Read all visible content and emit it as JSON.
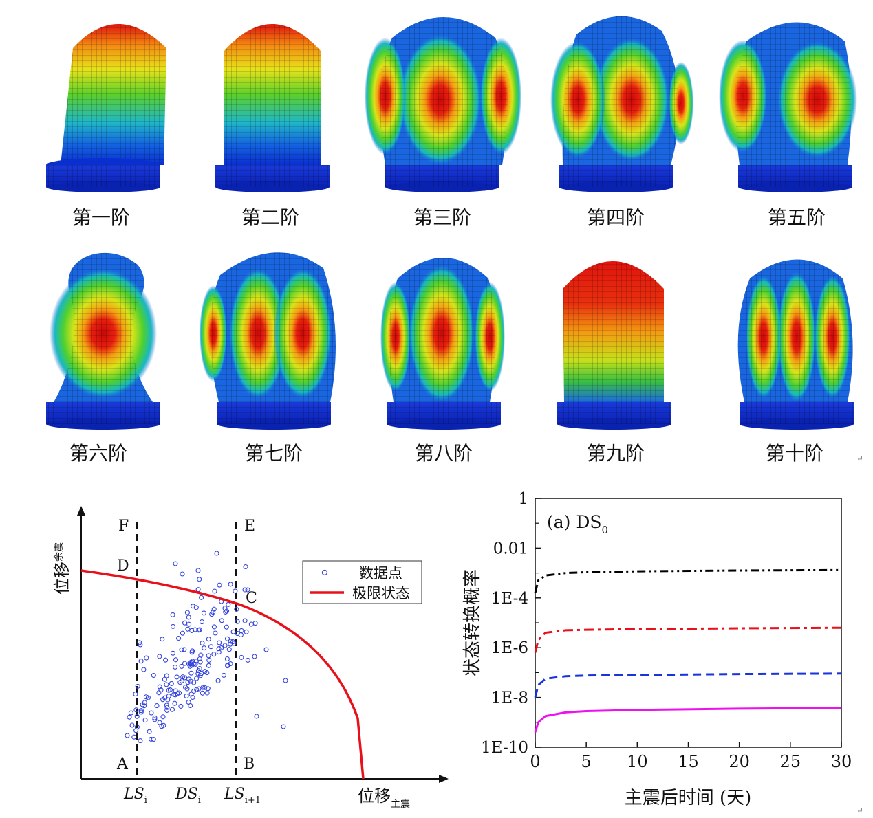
{
  "modes": {
    "row1": [
      "第一阶",
      "第二阶",
      "第三阶",
      "第四阶",
      "第五阶"
    ],
    "row2": [
      "第六阶",
      "第七阶",
      "第八阶",
      "第九阶",
      "第十阶"
    ]
  },
  "scatter_chart": {
    "type": "scatter",
    "ylabel_main": "位移",
    "ylabel_sub": "余震",
    "xlabel_main": "位移",
    "xlabel_sub": "主震",
    "legend": [
      "数据点",
      "极限状态"
    ],
    "points_labels": [
      "A",
      "B",
      "C",
      "D",
      "E",
      "F"
    ],
    "x_ticks": [
      {
        "main": "LS",
        "sub": "i"
      },
      {
        "main": "DS",
        "sub": "i"
      },
      {
        "main": "LS",
        "sub": "i+1"
      }
    ],
    "colors": {
      "data": "#3344dd",
      "limit": "#e8101a"
    }
  },
  "chart_data": {
    "type": "line",
    "title": "(a) DS",
    "title_sub": "0",
    "xlabel": "主震后时间 (天)",
    "ylabel": "状态转换概率",
    "x_ticks": [
      "0",
      "5",
      "10",
      "15",
      "20",
      "25",
      "30"
    ],
    "y_ticks": [
      "1",
      "0.01",
      "1E-4",
      "1E-6",
      "1E-8",
      "1E-10"
    ],
    "xlim": [
      0,
      30
    ],
    "ylim_log10": [
      -10,
      0
    ],
    "series": [
      {
        "name": "black dash-dot-dot",
        "color": "#000000",
        "x": [
          0,
          0.3,
          1,
          3,
          5,
          10,
          20,
          30
        ],
        "log10_values": [
          -3.8,
          -3.3,
          -3.1,
          -3.0,
          -2.97,
          -2.93,
          -2.9,
          -2.88
        ]
      },
      {
        "name": "red dash-dot",
        "color": "#e8101a",
        "x": [
          0,
          0.3,
          1,
          3,
          5,
          10,
          20,
          30
        ],
        "log10_values": [
          -6.2,
          -5.7,
          -5.4,
          -5.3,
          -5.28,
          -5.25,
          -5.22,
          -5.2
        ]
      },
      {
        "name": "blue dashed",
        "color": "#1a33dd",
        "x": [
          0,
          0.3,
          1,
          3,
          5,
          10,
          20,
          30
        ],
        "log10_values": [
          -8.0,
          -7.5,
          -7.25,
          -7.15,
          -7.12,
          -7.1,
          -7.06,
          -7.04
        ]
      },
      {
        "name": "magenta solid",
        "color": "#ee11ee",
        "x": [
          0,
          0.3,
          1,
          3,
          5,
          10,
          20,
          30
        ],
        "log10_values": [
          -9.4,
          -9.0,
          -8.75,
          -8.6,
          -8.55,
          -8.5,
          -8.45,
          -8.42
        ]
      }
    ]
  }
}
